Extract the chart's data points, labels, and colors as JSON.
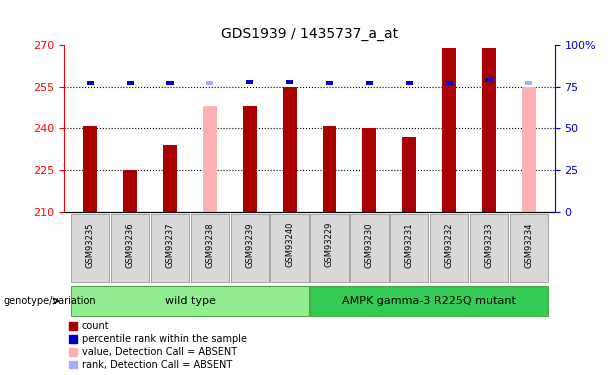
{
  "title": "GDS1939 / 1435737_a_at",
  "samples": [
    "GSM93235",
    "GSM93236",
    "GSM93237",
    "GSM93238",
    "GSM93239",
    "GSM93240",
    "GSM93229",
    "GSM93230",
    "GSM93231",
    "GSM93232",
    "GSM93233",
    "GSM93234"
  ],
  "red_values": [
    241,
    225,
    234,
    null,
    248,
    255,
    241,
    240,
    237,
    269,
    269,
    null
  ],
  "pink_values": [
    null,
    null,
    null,
    248,
    null,
    null,
    null,
    null,
    null,
    null,
    null,
    255
  ],
  "blue_ranks": [
    77,
    77,
    77,
    null,
    78,
    78,
    77,
    77,
    77,
    77,
    79,
    null
  ],
  "lightblue_ranks": [
    null,
    null,
    null,
    77,
    null,
    null,
    null,
    null,
    null,
    null,
    null,
    77
  ],
  "wild_type_range": [
    0,
    5
  ],
  "mutant_range": [
    6,
    11
  ],
  "wild_type_label": "wild type",
  "mutant_label": "AMPK gamma-3 R225Q mutant",
  "genotype_label": "genotype/variation",
  "ylim_left": [
    210,
    270
  ],
  "ylim_right": [
    0,
    100
  ],
  "yticks_left": [
    210,
    225,
    240,
    255,
    270
  ],
  "yticks_right": [
    0,
    25,
    50,
    75,
    100
  ],
  "ytick_labels_right": [
    "0",
    "25",
    "50",
    "75",
    "100%"
  ],
  "red_color": "#aa0000",
  "pink_color": "#ffb0b0",
  "blue_color": "#0000cc",
  "lightblue_color": "#aaaaff",
  "green_light": "#90ee90",
  "green_dark": "#33cc55",
  "bar_width": 0.35,
  "rank_bar_width": 0.18,
  "legend_items": [
    "count",
    "percentile rank within the sample",
    "value, Detection Call = ABSENT",
    "rank, Detection Call = ABSENT"
  ]
}
